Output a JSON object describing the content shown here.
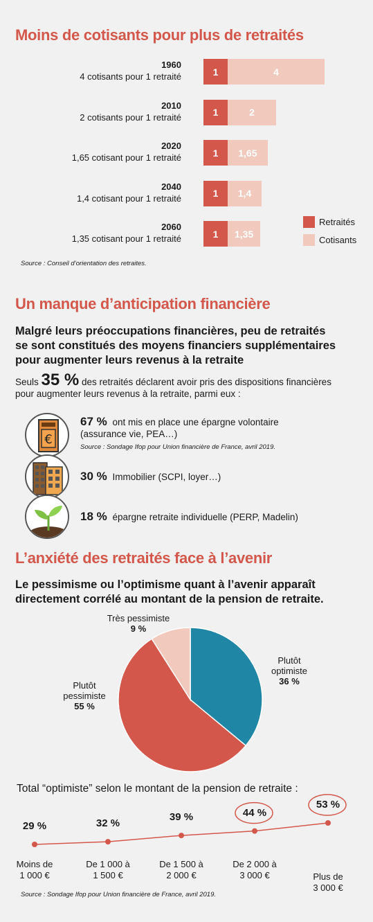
{
  "sections": {
    "s1_title": "Moins de cotisants pour plus de retraités",
    "s2_title": "Un manque d’anticipation financière",
    "s3_title": "L’anxiété des retraités face à l’avenir"
  },
  "chart_data": [
    {
      "type": "bar",
      "stacked": true,
      "orientation": "horizontal",
      "title": "Moins de cotisants pour plus de retraités",
      "categories": [
        "1960",
        "2010",
        "2020",
        "2040",
        "2060"
      ],
      "category_descriptions": [
        "4 cotisants pour 1 retraité",
        "2 cotisants pour 1 retraité",
        "1,65 cotisant pour 1 retraité",
        "1,4 cotisant pour 1 retraité",
        "1,35 cotisant pour 1 retraité"
      ],
      "series": [
        {
          "name": "Retraités",
          "values": [
            1,
            1,
            1,
            1,
            1
          ],
          "labels": [
            "1",
            "1",
            "1",
            "1",
            "1"
          ],
          "color": "#d4574b"
        },
        {
          "name": "Cotisants",
          "values": [
            4,
            2,
            1.65,
            1.4,
            1.35
          ],
          "labels": [
            "4",
            "2",
            "1,65",
            "1,4",
            "1,35"
          ],
          "color": "#f1c9bd"
        }
      ],
      "legend": "right",
      "source": "Source : Conseil d’orientation des retraites."
    },
    {
      "type": "pie",
      "slices": [
        {
          "label_lines": [
            "Plutôt",
            "optimiste"
          ],
          "value": 36,
          "value_label": "36 %",
          "color": "#1f87a5"
        },
        {
          "label_lines": [
            "Plutôt",
            "pessimiste"
          ],
          "value": 55,
          "value_label": "55 %",
          "color": "#d4574b"
        },
        {
          "label_lines": [
            "Très pessimiste"
          ],
          "value": 9,
          "value_label": "9 %",
          "color": "#f1c9bd"
        }
      ]
    },
    {
      "type": "line",
      "title": "Total “optimiste” selon le montant de la pension de retraite :",
      "categories": [
        [
          "Moins de",
          "1 000 €"
        ],
        [
          "De 1 000 à",
          "1 500 €"
        ],
        [
          "De 1 500 à",
          "2 000 €"
        ],
        [
          "De 2 000 à",
          "3 000 €"
        ],
        [
          "Plus de",
          "3 000 €"
        ]
      ],
      "values": [
        29,
        32,
        39,
        44,
        53
      ],
      "value_labels": [
        "29 %",
        "32 %",
        "39 %",
        "44 %",
        "53 %"
      ],
      "highlighted": [
        false,
        false,
        false,
        true,
        true
      ],
      "color": "#d4574b",
      "source": "Source : Sondage Ifop pour Union financière de France, avril 2019."
    }
  ],
  "anticipation": {
    "intro_lines": [
      "Malgré leurs préoccupations financières, peu de retraités",
      "se sont constitués des moyens financiers supplémentaires",
      "pour augmenter leurs revenus à la retraite"
    ],
    "seuls": "Seuls",
    "seuls_pct": "35 %",
    "seuls_rest": "des retraités déclarent avoir pris des dispositions financières",
    "seuls_line2": "pour augmenter leurs revenus à la retraite, parmi eux :",
    "items": [
      {
        "pct": "67 %",
        "text": "ont mis en place une épargne volontaire",
        "text2": "(assurance vie, PEA…)",
        "icon": "euro-document-icon"
      },
      {
        "pct": "30 %",
        "text": "Immobilier (SCPI, loyer…)",
        "icon": "building-icon"
      },
      {
        "pct": "18 %",
        "text": "épargne retraite individuelle (PERP, Madelin)",
        "icon": "plant-icon"
      }
    ],
    "source": "Source : Sondage Ifop pour Union financière de France, avril 2019."
  },
  "anxiety": {
    "intro_lines": [
      "Le pessimisme ou l’optimisme quant à l’avenir apparaît",
      "directement corrélé au montant de la pension de retraite."
    ]
  }
}
